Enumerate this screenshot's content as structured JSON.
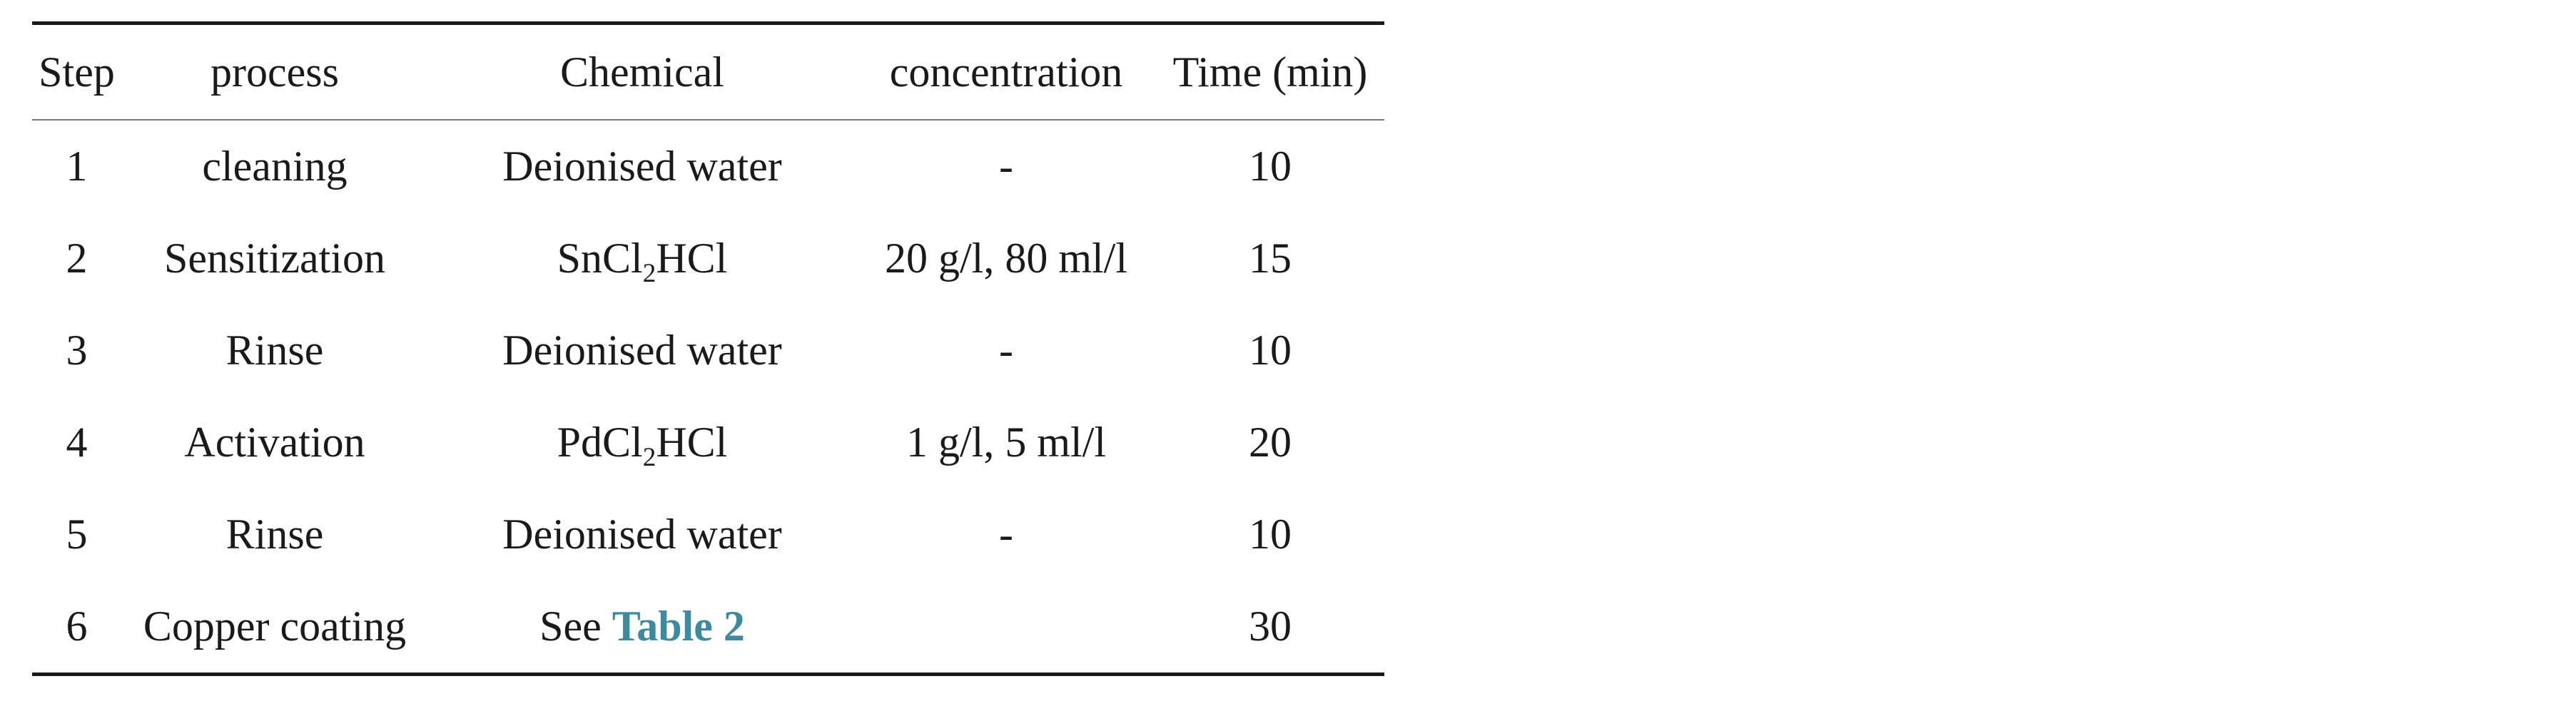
{
  "table": {
    "headers": [
      "Step",
      "process",
      "Chemical",
      "concentration",
      "Time (min)"
    ],
    "rows": [
      {
        "step": "1",
        "process": "cleaning",
        "chemical": "Deionised water",
        "concentration": "-",
        "time": "10"
      },
      {
        "step": "2",
        "process": "Sensitization",
        "chemical_base": "SnCl",
        "chemical_sub": "2",
        "chemical_suffix": "HCl",
        "concentration": "20 g/l, 80 ml/l",
        "time": "15"
      },
      {
        "step": "3",
        "process": "Rinse",
        "chemical": "Deionised water",
        "concentration": "-",
        "time": "10"
      },
      {
        "step": "4",
        "process": "Activation",
        "chemical_base": "PdCl",
        "chemical_sub": "2",
        "chemical_suffix": "HCl",
        "concentration": "1 g/l, 5 ml/l",
        "time": "20"
      },
      {
        "step": "5",
        "process": "Rinse",
        "chemical": "Deionised water",
        "concentration": "-",
        "time": "10"
      },
      {
        "step": "6",
        "process": "Copper coating",
        "chemical_prefix": "See ",
        "chemical_link": "Table 2",
        "concentration": "",
        "time": "30"
      }
    ]
  },
  "colors": {
    "link": "#3a8aa0",
    "text": "#1a1a1a"
  }
}
